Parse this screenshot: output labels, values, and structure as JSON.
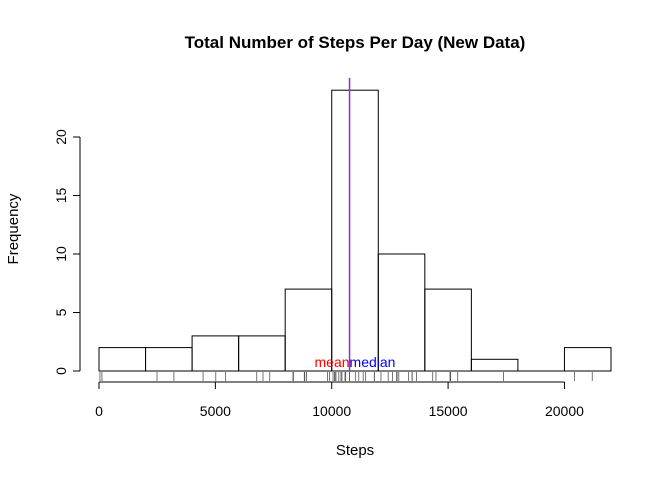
{
  "chart_data": {
    "type": "bar",
    "title": "Total Number of Steps Per Day (New Data)",
    "xlabel": "Steps",
    "ylabel": "Frequency",
    "bins": [
      {
        "from": 0,
        "to": 2000,
        "count": 2
      },
      {
        "from": 2000,
        "to": 4000,
        "count": 2
      },
      {
        "from": 4000,
        "to": 6000,
        "count": 3
      },
      {
        "from": 6000,
        "to": 8000,
        "count": 3
      },
      {
        "from": 8000,
        "to": 10000,
        "count": 7
      },
      {
        "from": 10000,
        "to": 12000,
        "count": 24
      },
      {
        "from": 12000,
        "to": 14000,
        "count": 10
      },
      {
        "from": 14000,
        "to": 16000,
        "count": 7
      },
      {
        "from": 16000,
        "to": 18000,
        "count": 1
      },
      {
        "from": 18000,
        "to": 20000,
        "count": 0
      },
      {
        "from": 20000,
        "to": 22000,
        "count": 2
      }
    ],
    "xlim": [
      0,
      22000
    ],
    "ylim": [
      0,
      25
    ],
    "x_ticks": [
      0,
      5000,
      10000,
      15000,
      20000
    ],
    "y_ticks": [
      0,
      5,
      10,
      15,
      20
    ],
    "x_tick_labels": [
      "0",
      "5000",
      "10000",
      "15000",
      "20000"
    ],
    "y_tick_labels": [
      "0",
      "5",
      "10",
      "15",
      "20"
    ],
    "mean": 10766,
    "median": 10766,
    "mean_label": "mean",
    "median_label": "median",
    "mean_color": "#ff0000",
    "median_color": "#0000ff",
    "line_color": "#8a2be2",
    "rug": [
      41,
      126,
      2492,
      3219,
      4472,
      5018,
      5441,
      6778,
      7047,
      7336,
      8334,
      8355,
      8821,
      8841,
      8918,
      9819,
      9900,
      10056,
      10119,
      10139,
      10183,
      10304,
      10395,
      10439,
      10571,
      10600,
      10765,
      10766,
      11015,
      11162,
      11352,
      11458,
      11829,
      11834,
      12116,
      12426,
      12608,
      12787,
      12811,
      12883,
      13294,
      13452,
      13460,
      13646,
      14339,
      14478,
      15084,
      15098,
      15110,
      15414,
      17382,
      20427,
      21194
    ]
  }
}
